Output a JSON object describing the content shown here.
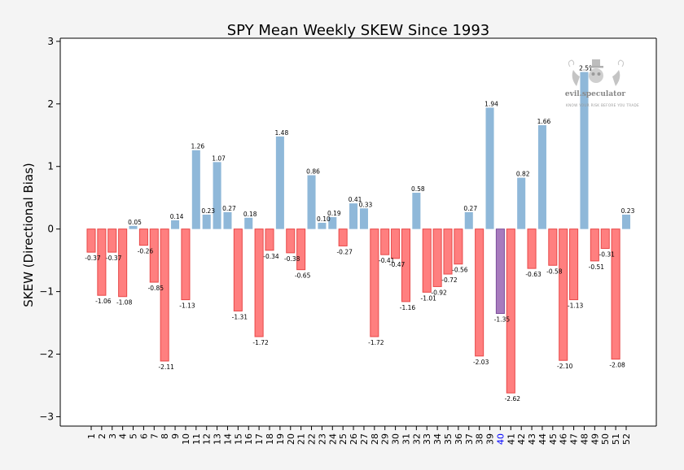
{
  "chart_data": {
    "type": "bar",
    "title": "SPY Mean Weekly SKEW Since 1993",
    "xlabel": "",
    "ylabel": "SKEW (Directional Bias)",
    "ylim": [
      -3.15,
      3.05
    ],
    "yticks": [
      3,
      2,
      1,
      0,
      -1,
      -2,
      -3
    ],
    "ytick_labels": [
      "3",
      "2",
      "1",
      "0",
      "−1",
      "−2",
      "−3"
    ],
    "categories": [
      "1",
      "2",
      "3",
      "4",
      "5",
      "6",
      "7",
      "8",
      "9",
      "10",
      "11",
      "12",
      "13",
      "14",
      "15",
      "16",
      "17",
      "18",
      "19",
      "20",
      "21",
      "22",
      "23",
      "24",
      "25",
      "26",
      "27",
      "28",
      "29",
      "30",
      "31",
      "32",
      "33",
      "34",
      "35",
      "36",
      "37",
      "38",
      "39",
      "40",
      "41",
      "42",
      "43",
      "44",
      "45",
      "46",
      "47",
      "48",
      "49",
      "50",
      "51",
      "52"
    ],
    "values": [
      -0.37,
      -1.06,
      -0.37,
      -1.08,
      0.05,
      -0.26,
      -0.85,
      -2.11,
      0.14,
      -1.13,
      1.26,
      0.23,
      1.07,
      0.27,
      -1.31,
      0.18,
      -1.72,
      -0.34,
      1.48,
      -0.38,
      -0.65,
      0.86,
      0.1,
      0.19,
      -0.27,
      0.41,
      0.33,
      -1.72,
      -0.41,
      -0.47,
      -1.16,
      0.58,
      -1.01,
      -0.92,
      -0.72,
      -0.56,
      0.27,
      -2.03,
      1.94,
      -1.35,
      -2.62,
      0.82,
      -0.63,
      1.66,
      -0.58,
      -2.1,
      -1.13,
      2.51,
      -0.51,
      -0.31,
      -2.08,
      0.23
    ],
    "value_labels": [
      "-0.37",
      "-1.06",
      "-0.37",
      "-1.08",
      "0.05",
      "-0.26",
      "-0.85",
      "-2.11",
      "0.14",
      "-1.13",
      "1.26",
      "0.23",
      "1.07",
      "0.27",
      "-1.31",
      "0.18",
      "-1.72",
      "-0.34",
      "1.48",
      "-0.38",
      "-0.65",
      "0.86",
      "0.10",
      "0.19",
      "-0.27",
      "0.41",
      "0.33",
      "-1.72",
      "-0.41",
      "-0.47",
      "-1.16",
      "0.58",
      "-1.01",
      "-0.92",
      "-0.72",
      "-0.56",
      "0.27",
      "-2.03",
      "1.94",
      "-1.35",
      "-2.62",
      "0.82",
      "-0.63",
      "1.66",
      "-0.58",
      "-2.10",
      "-1.13",
      "2.51",
      "-0.51",
      "-0.31",
      "-2.08",
      "0.23"
    ],
    "highlight_category": "40",
    "grid": false,
    "legend": "none",
    "colors": {
      "positive_fill": "#8fb8d9",
      "negative_fill": "#ff7f7f",
      "negative_edge": "#e84848",
      "highlight_fill": "#a77bbd",
      "highlight_edge": "#7d4f9b",
      "highlight_tick": "#0000ff",
      "plot_bg": "#ffffff",
      "page_bg": "#f4f4f4"
    }
  },
  "watermark": {
    "name": "evil.speculator",
    "tagline": "KNOW YOUR RISK BEFORE YOU TRADE",
    "icon": "top-hat-mascot-icon"
  }
}
